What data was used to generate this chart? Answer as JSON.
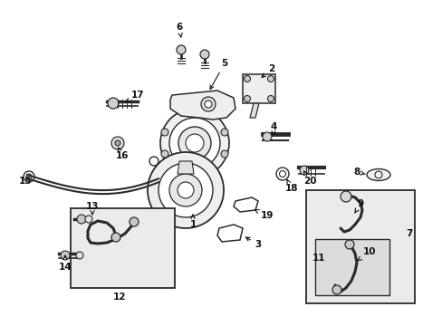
{
  "bg_color": "#ffffff",
  "line_color": "#2a2a2a",
  "box_fill": "#e8e8e8",
  "figsize": [
    4.89,
    3.6
  ],
  "dpi": 100,
  "xlim": [
    0,
    489
  ],
  "ylim": [
    0,
    360
  ]
}
